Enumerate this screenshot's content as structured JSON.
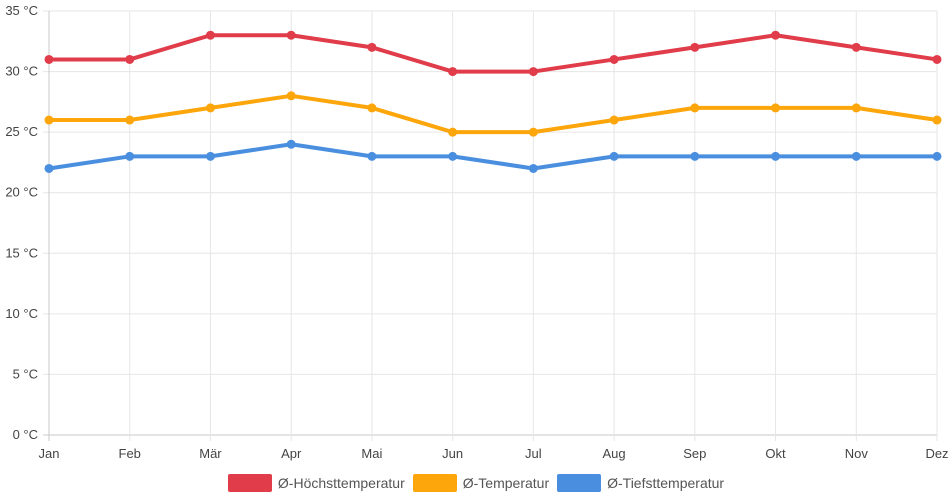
{
  "chart_data": {
    "type": "line",
    "title": "",
    "xlabel": "",
    "ylabel": "",
    "categories": [
      "Jan",
      "Feb",
      "Mär",
      "Apr",
      "Mai",
      "Jun",
      "Jul",
      "Aug",
      "Sep",
      "Okt",
      "Nov",
      "Dez"
    ],
    "ylim": [
      0,
      35
    ],
    "yticks": [
      0,
      5,
      10,
      15,
      20,
      25,
      30,
      35
    ],
    "ytick_labels": [
      "0 °C",
      "5 °C",
      "10 °C",
      "15 °C",
      "20 °C",
      "25 °C",
      "30 °C",
      "35 °C"
    ],
    "grid": true,
    "legend_position": "bottom",
    "series": [
      {
        "name": "Ø-Höchsttemperatur",
        "color": "#e03c4a",
        "values": [
          31,
          31,
          33,
          33,
          32,
          30,
          30,
          31,
          32,
          33,
          32,
          31
        ]
      },
      {
        "name": "Ø-Temperatur",
        "color": "#fca60c",
        "values": [
          26,
          26,
          27,
          28,
          27,
          25,
          25,
          26,
          27,
          27,
          27,
          26
        ]
      },
      {
        "name": "Ø-Tiefsttemperatur",
        "color": "#4a8fdf",
        "values": [
          22,
          23,
          23,
          24,
          23,
          23,
          22,
          23,
          23,
          23,
          23,
          23
        ]
      }
    ]
  }
}
